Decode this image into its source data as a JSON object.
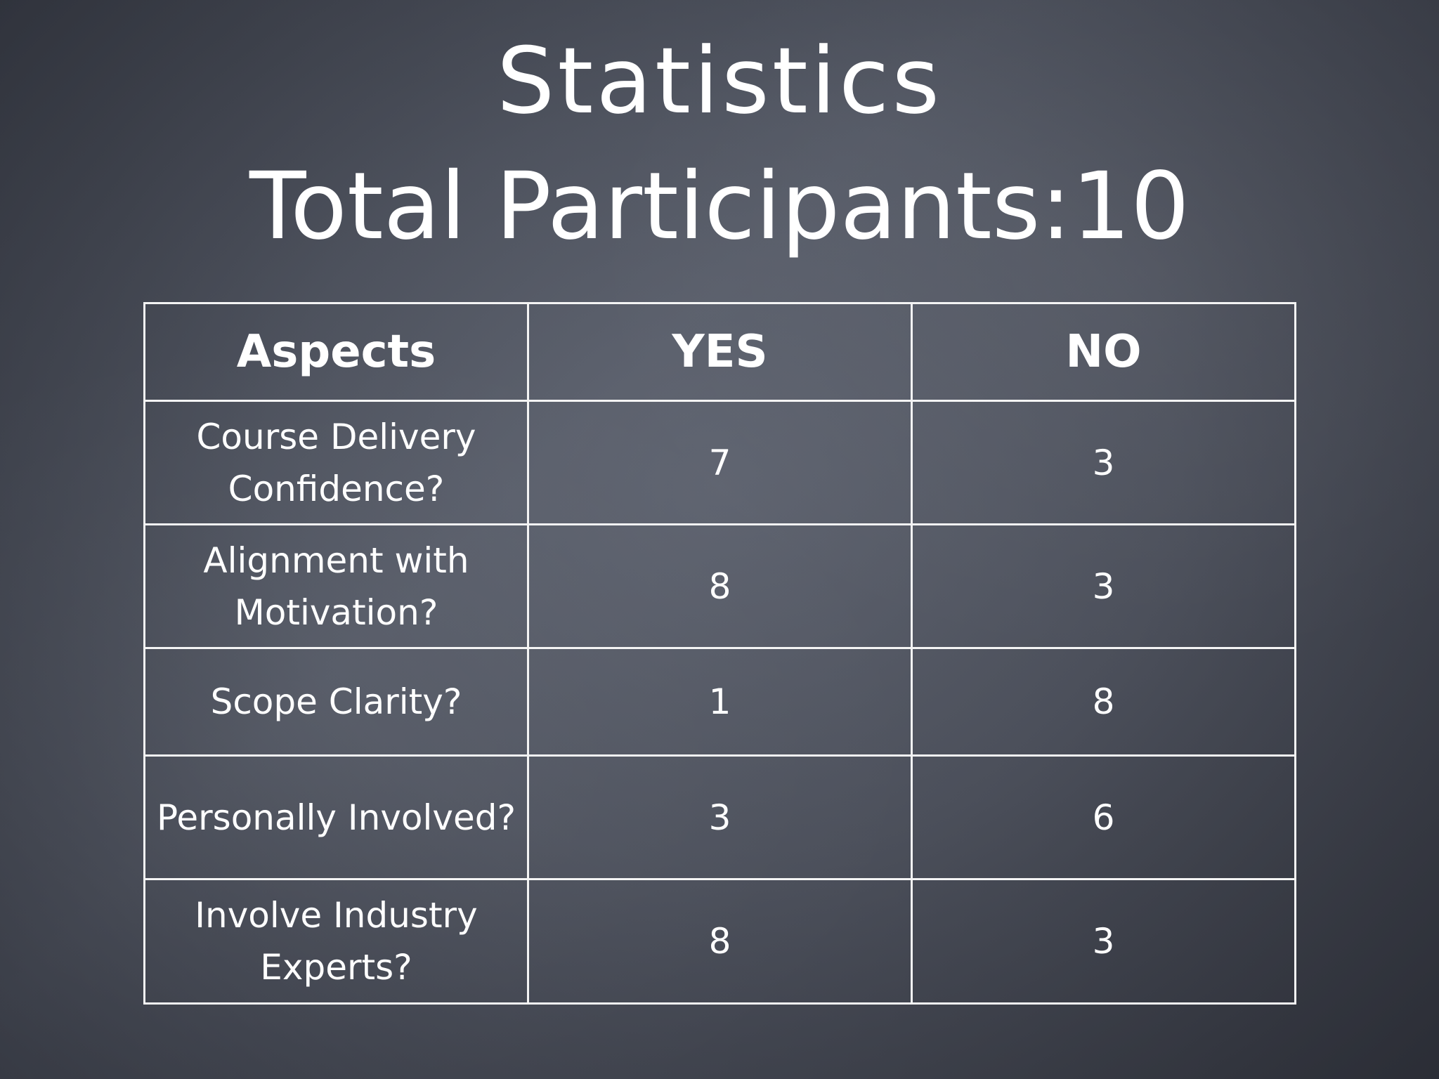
{
  "slide": {
    "title_line1": "Statistics",
    "title_line2": "Total Participants:10"
  },
  "table": {
    "headers": [
      "Aspects",
      "YES",
      "NO"
    ],
    "rows": [
      {
        "aspect": "Course Delivery Confidence?",
        "yes": "7",
        "no": "3"
      },
      {
        "aspect": "Alignment with Motivation?",
        "yes": "8",
        "no": "3"
      },
      {
        "aspect": "Scope Clarity?",
        "yes": "1",
        "no": "8"
      },
      {
        "aspect": "Personally Involved?",
        "yes": "3",
        "no": "6"
      },
      {
        "aspect": "Involve Industry Experts?",
        "yes": "8",
        "no": "3"
      }
    ]
  },
  "colors": {
    "background": "#4b4f5a",
    "text": "#ffffff",
    "table_border": "#f4f4f4"
  }
}
